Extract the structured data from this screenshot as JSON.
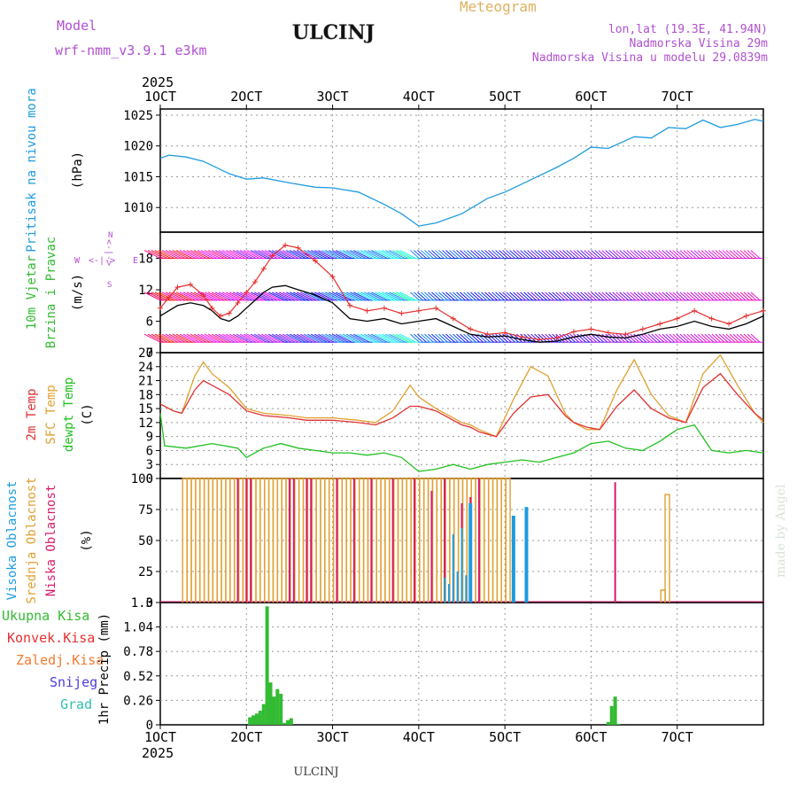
{
  "header": {
    "model_label": "Model",
    "model_name": "wrf-nmm_v3.9.1 e3km",
    "station": "ULCINJ",
    "chart_type": "Meteogram",
    "coords": "lon,lat (19.3E, 41.94N)",
    "altitude": "Nadmorska Visina 29m",
    "model_altitude": "Nadmorska Visina u modelu 29.0839m",
    "year": "2025",
    "footer_station": "ULCINJ",
    "watermark": "made by Angel"
  },
  "colors": {
    "pressure": "#1e9be0",
    "wind_speed": "#000000",
    "gust": "#e53030",
    "temp_2m": "#e03030",
    "temp_sfc": "#e0a030",
    "dewpoint": "#20c020",
    "cloud_high": "#1e9be0",
    "cloud_mid": "#e0a030",
    "cloud_low": "#d81b6a",
    "precip": "#33bb33",
    "axis_label_purple": "#b050d0",
    "title_orange": "#e0b060"
  },
  "chart_data": [
    {
      "type": "line",
      "panel": "pressure",
      "ylabel_main": "Pritisak na nivou mora",
      "ylabel_unit": "(hPa)",
      "x_tick_labels": [
        "1OCT",
        "2OCT",
        "3OCT",
        "4OCT",
        "5OCT",
        "6OCT",
        "7OCT"
      ],
      "y_ticks": [
        1010,
        1015,
        1020,
        1025
      ],
      "ylim": [
        1006,
        1026
      ],
      "x": [
        0.0,
        0.1,
        0.3,
        0.5,
        0.8,
        1.0,
        1.2,
        1.5,
        1.8,
        2.0,
        2.3,
        2.6,
        2.8,
        3.0,
        3.2,
        3.5,
        3.8,
        4.0,
        4.3,
        4.6,
        4.8,
        5.0,
        5.2,
        5.5,
        5.7,
        5.9,
        6.1,
        6.3,
        6.5,
        6.7,
        6.9,
        7.0
      ],
      "values": [
        1018.0,
        1018.5,
        1018.2,
        1017.5,
        1015.5,
        1014.6,
        1014.8,
        1014.0,
        1013.3,
        1013.2,
        1012.5,
        1010.5,
        1009.0,
        1007.0,
        1007.5,
        1009.0,
        1011.5,
        1012.5,
        1014.5,
        1016.5,
        1018.0,
        1019.8,
        1019.6,
        1021.5,
        1021.3,
        1023.0,
        1022.8,
        1024.2,
        1023.0,
        1023.5,
        1024.3,
        1024.0
      ]
    },
    {
      "type": "line",
      "panel": "wind",
      "ylabel_main": "10m Vjetar",
      "ylabel_sub": "Brzina i Pravac",
      "ylabel_unit": "(m/s)",
      "compass": "N S W E",
      "y_ticks": [
        0,
        6,
        12,
        18
      ],
      "ylim": [
        0,
        23
      ],
      "series": [
        {
          "name": "Brzina",
          "x": [
            0.0,
            0.1,
            0.2,
            0.35,
            0.5,
            0.6,
            0.7,
            0.8,
            0.9,
            1.0,
            1.1,
            1.2,
            1.3,
            1.45,
            1.6,
            1.8,
            2.0,
            2.2,
            2.4,
            2.6,
            2.8,
            3.0,
            3.2,
            3.4,
            3.6,
            3.8,
            4.0,
            4.2,
            4.4,
            4.6,
            4.8,
            5.0,
            5.2,
            5.4,
            5.6,
            5.8,
            6.0,
            6.2,
            6.4,
            6.6,
            6.8,
            7.0
          ],
          "values": [
            7.0,
            8.0,
            9.0,
            9.5,
            9.0,
            8.0,
            6.5,
            6.0,
            7.0,
            8.5,
            10.0,
            11.5,
            12.5,
            12.8,
            12.0,
            11.0,
            9.5,
            6.5,
            6.0,
            6.5,
            5.5,
            6.0,
            6.5,
            5.0,
            3.5,
            3.0,
            3.2,
            2.5,
            2.0,
            2.2,
            3.0,
            3.5,
            3.0,
            2.8,
            3.5,
            4.5,
            5.0,
            6.0,
            5.0,
            4.5,
            5.5,
            7.0
          ]
        },
        {
          "name": "Udari",
          "x": [
            0.0,
            0.1,
            0.2,
            0.35,
            0.5,
            0.6,
            0.7,
            0.8,
            0.9,
            1.0,
            1.1,
            1.2,
            1.3,
            1.45,
            1.6,
            1.8,
            2.0,
            2.2,
            2.4,
            2.6,
            2.8,
            3.0,
            3.2,
            3.4,
            3.6,
            3.8,
            4.0,
            4.2,
            4.4,
            4.6,
            4.8,
            5.0,
            5.2,
            5.4,
            5.6,
            5.8,
            6.0,
            6.2,
            6.4,
            6.6,
            6.8,
            7.0
          ],
          "values": [
            8.5,
            10.5,
            12.5,
            13.0,
            11.0,
            8.5,
            7.0,
            7.5,
            9.5,
            11.5,
            13.5,
            16.0,
            18.5,
            20.5,
            20.0,
            17.5,
            14.5,
            9.0,
            8.0,
            8.5,
            7.5,
            8.0,
            8.5,
            6.5,
            4.5,
            3.5,
            3.8,
            3.0,
            2.5,
            2.8,
            4.0,
            4.5,
            3.8,
            3.5,
            4.5,
            5.5,
            6.5,
            8.0,
            6.5,
            5.5,
            7.0,
            8.0
          ]
        }
      ],
      "barb_rows_ms": [
        2,
        10,
        18
      ]
    },
    {
      "type": "line",
      "panel": "temperature",
      "ylabel_main": "2m Temp",
      "ylabel_sfc": "SFC Temp",
      "ylabel_dew": "dewpt Temp",
      "ylabel_unit": "(C)",
      "y_ticks": [
        0,
        3,
        6,
        9,
        12,
        15,
        18,
        21,
        24,
        27
      ],
      "ylim": [
        0,
        27
      ],
      "series": [
        {
          "name": "2m Temp",
          "x": [
            0.0,
            0.15,
            0.25,
            0.4,
            0.5,
            0.6,
            0.8,
            1.0,
            1.2,
            1.5,
            1.7,
            2.0,
            2.3,
            2.5,
            2.7,
            2.9,
            3.0,
            3.2,
            3.4,
            3.5,
            3.6,
            3.7,
            3.9,
            4.1,
            4.3,
            4.5,
            4.7,
            4.8,
            4.95,
            5.1,
            5.3,
            5.5,
            5.7,
            5.9,
            6.1,
            6.3,
            6.5,
            6.7,
            6.9,
            7.0
          ],
          "values": [
            16.0,
            14.5,
            14.0,
            19.0,
            21.0,
            20.0,
            18.0,
            14.5,
            13.5,
            13.0,
            12.5,
            12.5,
            12.0,
            11.5,
            13.0,
            15.5,
            15.5,
            14.5,
            12.5,
            11.5,
            11.0,
            10.0,
            9.0,
            14.0,
            17.5,
            18.0,
            13.5,
            12.0,
            11.0,
            10.5,
            15.5,
            19.0,
            15.0,
            13.0,
            12.0,
            19.5,
            22.5,
            18.0,
            14.0,
            12.5
          ]
        },
        {
          "name": "SFC Temp",
          "x": [
            0.0,
            0.15,
            0.25,
            0.4,
            0.5,
            0.6,
            0.8,
            1.0,
            1.2,
            1.5,
            1.7,
            2.0,
            2.3,
            2.5,
            2.7,
            2.9,
            3.0,
            3.2,
            3.4,
            3.5,
            3.6,
            3.7,
            3.9,
            4.1,
            4.3,
            4.5,
            4.7,
            4.8,
            4.95,
            5.1,
            5.3,
            5.5,
            5.7,
            5.9,
            6.1,
            6.3,
            6.5,
            6.7,
            6.9,
            7.0
          ],
          "values": [
            16.0,
            14.5,
            14.0,
            22.0,
            25.0,
            22.5,
            19.5,
            15.0,
            14.0,
            13.5,
            13.0,
            13.0,
            12.5,
            12.0,
            14.5,
            20.0,
            17.5,
            15.0,
            13.0,
            12.0,
            11.5,
            10.5,
            9.0,
            17.0,
            24.0,
            22.0,
            14.0,
            12.0,
            10.5,
            10.5,
            19.0,
            25.5,
            18.0,
            13.5,
            12.0,
            22.5,
            26.5,
            20.0,
            14.0,
            12.0
          ]
        },
        {
          "name": "dewpt Temp",
          "x": [
            0.0,
            0.05,
            0.3,
            0.6,
            0.9,
            1.0,
            1.2,
            1.4,
            1.6,
            1.8,
            2.0,
            2.2,
            2.4,
            2.6,
            2.8,
            3.0,
            3.2,
            3.4,
            3.6,
            3.8,
            4.0,
            4.2,
            4.4,
            4.6,
            4.8,
            5.0,
            5.2,
            5.4,
            5.6,
            5.8,
            6.0,
            6.2,
            6.4,
            6.6,
            6.8,
            7.0
          ],
          "values": [
            14.0,
            7.0,
            6.5,
            7.5,
            6.5,
            4.5,
            6.5,
            7.5,
            6.5,
            6.0,
            5.5,
            5.5,
            5.0,
            5.5,
            4.5,
            1.5,
            2.0,
            3.0,
            2.0,
            3.0,
            3.5,
            4.0,
            3.5,
            4.5,
            5.5,
            7.5,
            8.0,
            6.5,
            6.0,
            8.0,
            10.5,
            11.5,
            6.0,
            5.5,
            6.0,
            5.5
          ]
        }
      ]
    },
    {
      "type": "bar",
      "panel": "cloud",
      "ylabel_high": "Visoka Oblacnost",
      "ylabel_mid": "Srednja Oblacnost",
      "ylabel_low": "Niska Oblacnost",
      "ylabel_unit": "(%)",
      "y_ticks": [
        0,
        25,
        50,
        75,
        100
      ],
      "ylim": [
        0,
        100
      ],
      "series": [
        {
          "name": "Srednja",
          "x": [
            0.28,
            0.33,
            0.38,
            0.43,
            0.48,
            0.53,
            0.58,
            0.63,
            0.68,
            0.73,
            0.78,
            0.83,
            0.88,
            0.93,
            0.98,
            1.03,
            1.08,
            1.13,
            1.18,
            1.23,
            1.28,
            1.33,
            1.38,
            1.43,
            1.48,
            1.53,
            1.58,
            1.63,
            1.68,
            1.73,
            1.78,
            1.83,
            1.88,
            1.93,
            1.98,
            2.03,
            2.08,
            2.13,
            2.18,
            2.23,
            2.28,
            2.33,
            2.38,
            2.43,
            2.48,
            2.53,
            2.58,
            2.63,
            2.68,
            2.73,
            2.78,
            2.83,
            2.88,
            2.93,
            2.98,
            3.03,
            3.08,
            3.13,
            3.18,
            3.23,
            3.28,
            3.33,
            3.38,
            3.43,
            3.48,
            3.53,
            3.58,
            3.63,
            3.68,
            3.73,
            3.78,
            3.83,
            3.88,
            3.93,
            3.98,
            4.03,
            5.83,
            5.88
          ],
          "values": [
            100,
            100,
            100,
            100,
            100,
            100,
            100,
            100,
            100,
            100,
            100,
            100,
            100,
            100,
            100,
            100,
            100,
            100,
            100,
            100,
            100,
            100,
            100,
            100,
            100,
            100,
            100,
            100,
            100,
            100,
            100,
            100,
            100,
            100,
            100,
            100,
            100,
            100,
            100,
            100,
            100,
            100,
            100,
            100,
            100,
            100,
            100,
            100,
            100,
            100,
            100,
            100,
            100,
            100,
            100,
            100,
            100,
            100,
            100,
            100,
            100,
            100,
            100,
            100,
            100,
            100,
            100,
            100,
            100,
            100,
            100,
            100,
            100,
            100,
            100,
            100,
            10,
            87
          ]
        },
        {
          "name": "Niska",
          "x": [
            0.9,
            1.0,
            1.05,
            1.5,
            1.55,
            1.7,
            1.75,
            2.05,
            2.25,
            2.45,
            2.7,
            2.95,
            3.15,
            3.3,
            3.5,
            3.6,
            3.7,
            4.25,
            5.28
          ],
          "values": [
            100,
            100,
            100,
            100,
            100,
            100,
            100,
            100,
            100,
            100,
            100,
            100,
            90,
            100,
            80,
            85,
            100,
            40,
            97
          ]
        },
        {
          "name": "Visoka",
          "x": [
            3.3,
            3.35,
            3.4,
            3.45,
            3.5,
            3.55,
            3.6,
            4.1,
            4.25
          ],
          "values": [
            20,
            15,
            55,
            25,
            60,
            22,
            80,
            70,
            77
          ]
        }
      ]
    },
    {
      "type": "bar",
      "panel": "precip",
      "legend": [
        "Ukupna Kisa",
        "Konvek.Kisa",
        "Zaledj.Kisa",
        "Snijeg",
        "Grad"
      ],
      "ylabel_main": "1hr Precip",
      "ylabel_unit": "(mm)",
      "y_ticks": [
        "0",
        "0.26",
        "0.52",
        "0.78",
        "1.04",
        "1.3"
      ],
      "ylim": [
        0,
        1.3
      ],
      "x_tick_labels": [
        "1OCT",
        "2OCT",
        "3OCT",
        "4OCT",
        "5OCT",
        "6OCT",
        "7OCT"
      ],
      "x": [
        1.04,
        1.08,
        1.12,
        1.16,
        1.2,
        1.24,
        1.28,
        1.32,
        1.36,
        1.4,
        1.44,
        1.48,
        1.52,
        1.56,
        5.2,
        5.24,
        5.28,
        5.32
      ],
      "values": [
        0.08,
        0.1,
        0.12,
        0.15,
        0.22,
        1.26,
        0.45,
        0.3,
        0.38,
        0.33,
        0.02,
        0.05,
        0.07,
        0.0,
        0.03,
        0.2,
        0.3,
        0.01
      ]
    }
  ]
}
